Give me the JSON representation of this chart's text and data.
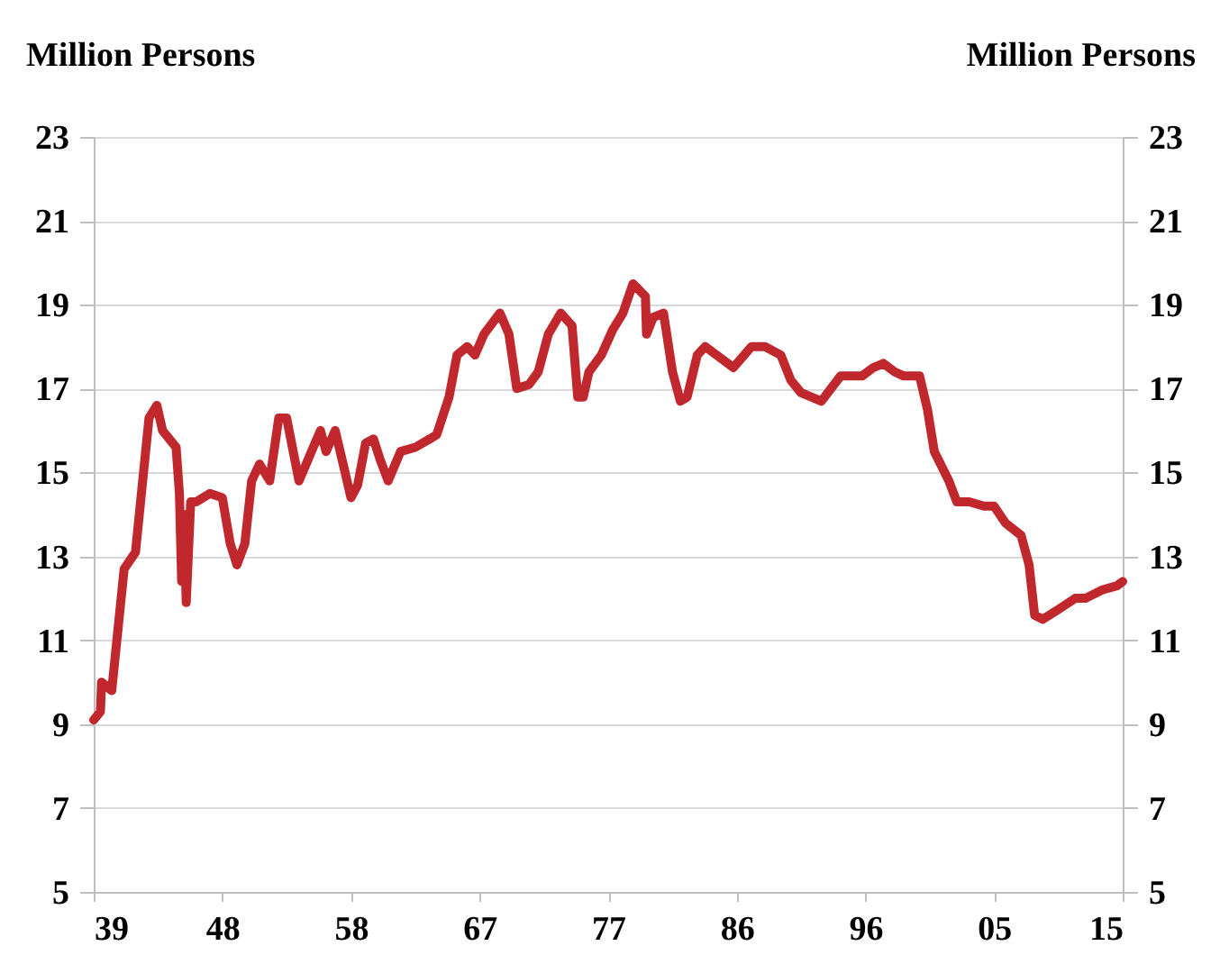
{
  "chart_data": {
    "type": "line",
    "ylabel": "Million Persons",
    "y2label": "Million Persons",
    "x": [
      "1939-01",
      "1939-07",
      "1939-08",
      "1940-05",
      "1941-04",
      "1942-02",
      "1943-02",
      "1943-09",
      "1944-02",
      "1945-02",
      "1945-05",
      "1945-07",
      "1945-09",
      "1945-11",
      "1946-03",
      "1946-08",
      "1947-08",
      "1948-07",
      "1949-02",
      "1949-08",
      "1950-03",
      "1950-09",
      "1951-04",
      "1952-01",
      "1952-09",
      "1953-04",
      "1954-03",
      "1955-02",
      "1955-10",
      "1956-03",
      "1956-11",
      "1957-07",
      "1958-01",
      "1958-07",
      "1959-02",
      "1959-09",
      "1960-03",
      "1960-10",
      "1961-09",
      "1962-10",
      "1963-11",
      "1964-05",
      "1965-04",
      "1965-11",
      "1966-08",
      "1967-03",
      "1967-11",
      "1969-01",
      "1969-09",
      "1970-04",
      "1971-03",
      "1971-11",
      "1972-08",
      "1973-07",
      "1974-05",
      "1974-10",
      "1975-03",
      "1975-08",
      "1976-07",
      "1977-05",
      "1978-02",
      "1978-11",
      "1979-10",
      "1979-11",
      "1980-05",
      "1981-02",
      "1981-10",
      "1982-05",
      "1982-11",
      "1983-08",
      "1984-03",
      "1985-01",
      "1986-04",
      "1987-08",
      "1988-08",
      "1989-10",
      "1990-07",
      "1991-04",
      "1992-10",
      "1994-03",
      "1995-10",
      "1996-08",
      "1997-05",
      "1998-03",
      "1998-11",
      "2000-01",
      "2000-08",
      "2001-02",
      "2002-03",
      "2002-10",
      "2003-09",
      "2004-10",
      "2005-07",
      "2006-05",
      "2007-07",
      "2008-02",
      "2008-07",
      "2009-02",
      "2010-02",
      "2011-07",
      "2012-04",
      "2013-07",
      "2014-08",
      "2015-01"
    ],
    "series": [
      {
        "color": "#c0282d",
        "values": [
          9.1,
          9.3,
          10.0,
          9.8,
          12.7,
          13.1,
          16.3,
          16.6,
          16.0,
          15.6,
          14.5,
          12.4,
          14.0,
          11.9,
          14.3,
          14.3,
          14.5,
          14.4,
          13.3,
          12.8,
          13.3,
          14.8,
          15.2,
          14.8,
          16.3,
          16.3,
          14.8,
          15.5,
          16.0,
          15.5,
          16.0,
          15.1,
          14.4,
          14.7,
          15.7,
          15.8,
          15.3,
          14.8,
          15.5,
          15.6,
          15.8,
          15.9,
          16.8,
          17.8,
          18.0,
          17.8,
          18.3,
          18.8,
          18.3,
          17.0,
          17.1,
          17.4,
          18.3,
          18.8,
          18.5,
          16.8,
          16.8,
          17.4,
          17.8,
          18.4,
          18.8,
          19.5,
          19.2,
          18.3,
          18.7,
          18.8,
          17.4,
          16.7,
          16.8,
          17.8,
          18.0,
          17.8,
          17.5,
          18.0,
          18.0,
          17.8,
          17.2,
          16.9,
          16.7,
          17.3,
          17.3,
          17.5,
          17.6,
          17.4,
          17.3,
          17.3,
          16.5,
          15.5,
          14.8,
          14.3,
          14.3,
          14.2,
          14.2,
          13.8,
          13.5,
          12.8,
          11.6,
          11.5,
          11.7,
          12.0,
          12.0,
          12.2,
          12.3,
          12.4
        ]
      }
    ],
    "xlim": [
      "1939-01",
      "2015-01"
    ],
    "xticks": [
      {
        "value": "1939-01",
        "label": "39"
      },
      {
        "value": "1948-07",
        "label": "48"
      },
      {
        "value": "1958-01",
        "label": "58"
      },
      {
        "value": "1967-07",
        "label": "67"
      },
      {
        "value": "1977-01",
        "label": "77"
      },
      {
        "value": "1986-07",
        "label": "86"
      },
      {
        "value": "1996-01",
        "label": "96"
      },
      {
        "value": "2005-07",
        "label": "05"
      },
      {
        "value": "2015-01",
        "label": "15"
      }
    ],
    "ylim": [
      5,
      23
    ],
    "yticks": [
      5,
      7,
      9,
      11,
      13,
      15,
      17,
      19,
      21,
      23
    ],
    "y2lim": [
      5,
      23
    ],
    "y2ticks": [
      5,
      7,
      9,
      11,
      13,
      15,
      17,
      19,
      21,
      23
    ],
    "grid": "y",
    "legend": false,
    "marker": "none",
    "line_style": "solid"
  }
}
